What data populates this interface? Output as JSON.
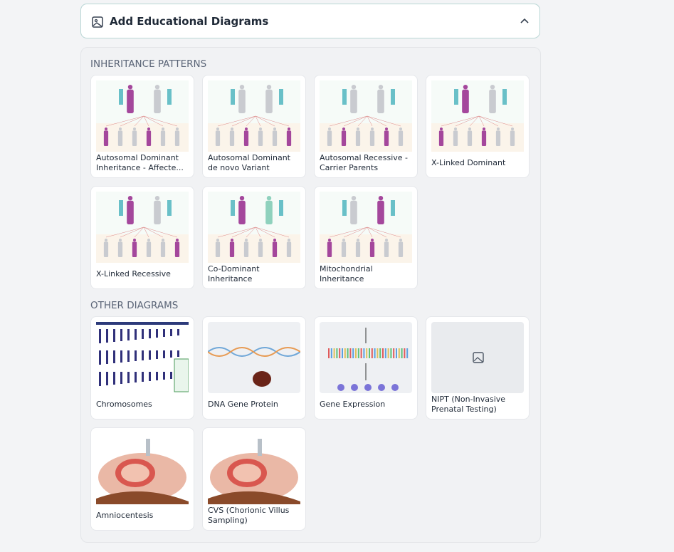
{
  "header": {
    "title": "Add Educational Diagrams"
  },
  "sections": [
    {
      "title": "INHERITANCE PATTERNS",
      "items": [
        "Autosomal Dominant Inheritance - Affecte...",
        "Autosomal Dominant de novo Variant",
        "Autosomal Recessive - Carrier Parents",
        "X-Linked Dominant",
        "X-Linked Recessive",
        "Co-Dominant Inheritance",
        "Mitochondrial Inheritance"
      ]
    },
    {
      "title": "OTHER DIAGRAMS",
      "items": [
        "Chromosomes",
        "DNA Gene Protein",
        "Gene Expression",
        "NIPT (Non-Invasive Prenatal Testing)",
        "Amniocentesis",
        "CVS (Chorionic Villus Sampling)"
      ]
    }
  ]
}
